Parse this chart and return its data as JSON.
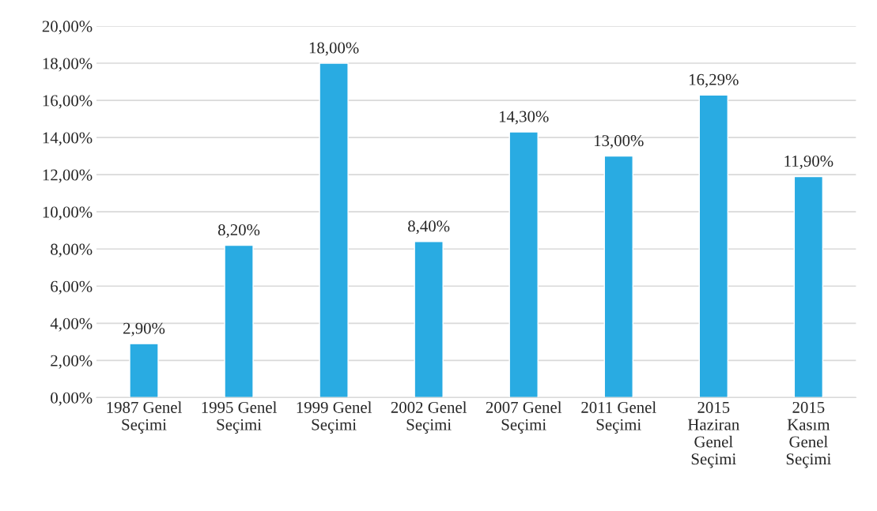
{
  "chart_data": {
    "type": "bar",
    "categories": [
      "1987 Genel\nSeçimi",
      "1995 Genel\nSeçimi",
      "1999 Genel\nSeçimi",
      "2002 Genel\nSeçimi",
      "2007 Genel\nSeçimi",
      "2011 Genel\nSeçimi",
      "2015\nHaziran\nGenel\nSeçimi",
      "2015\nKasım\nGenel\nSeçimi"
    ],
    "values": [
      2.9,
      8.2,
      18.0,
      8.4,
      14.3,
      13.0,
      16.29,
      11.9
    ],
    "value_labels": [
      "2,90%",
      "8,20%",
      "18,00%",
      "8,40%",
      "14,30%",
      "13,00%",
      "16,29%",
      "11,90%"
    ],
    "color": "#29abe2",
    "ylim": [
      0,
      20
    ],
    "yticks": [
      {
        "value": 0,
        "label": "0,00%"
      },
      {
        "value": 2,
        "label": "2,00%"
      },
      {
        "value": 4,
        "label": "4,00%"
      },
      {
        "value": 6,
        "label": "6,00%"
      },
      {
        "value": 8,
        "label": "8,00%"
      },
      {
        "value": 10,
        "label": "10,00%"
      },
      {
        "value": 12,
        "label": "12,00%"
      },
      {
        "value": 14,
        "label": "14,00%"
      },
      {
        "value": 16,
        "label": "16,00%"
      },
      {
        "value": 18,
        "label": "18,00%"
      },
      {
        "value": 20,
        "label": "20,00%"
      }
    ],
    "grid": "y"
  }
}
